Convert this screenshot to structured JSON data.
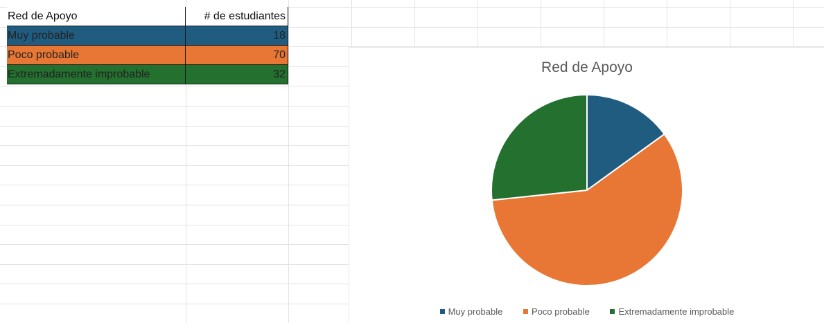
{
  "table": {
    "header": {
      "label": "Red de Apoyo",
      "count": "# de estudiantes"
    },
    "rows": [
      {
        "label": "Muy probable",
        "count": "18",
        "color": "#1f5c7f"
      },
      {
        "label": "Poco probable",
        "count": "70",
        "color": "#e87634"
      },
      {
        "label": "Extremadamente improbable",
        "count": "32",
        "color": "#23702f"
      }
    ]
  },
  "chart_data": {
    "type": "pie",
    "title": "Red de Apoyo",
    "categories": [
      "Muy probable",
      "Poco probable",
      "Extremadamente improbable"
    ],
    "values": [
      18,
      70,
      32
    ],
    "colors": [
      "#1f5c7f",
      "#e87634",
      "#23702f"
    ],
    "legend_position": "bottom"
  }
}
